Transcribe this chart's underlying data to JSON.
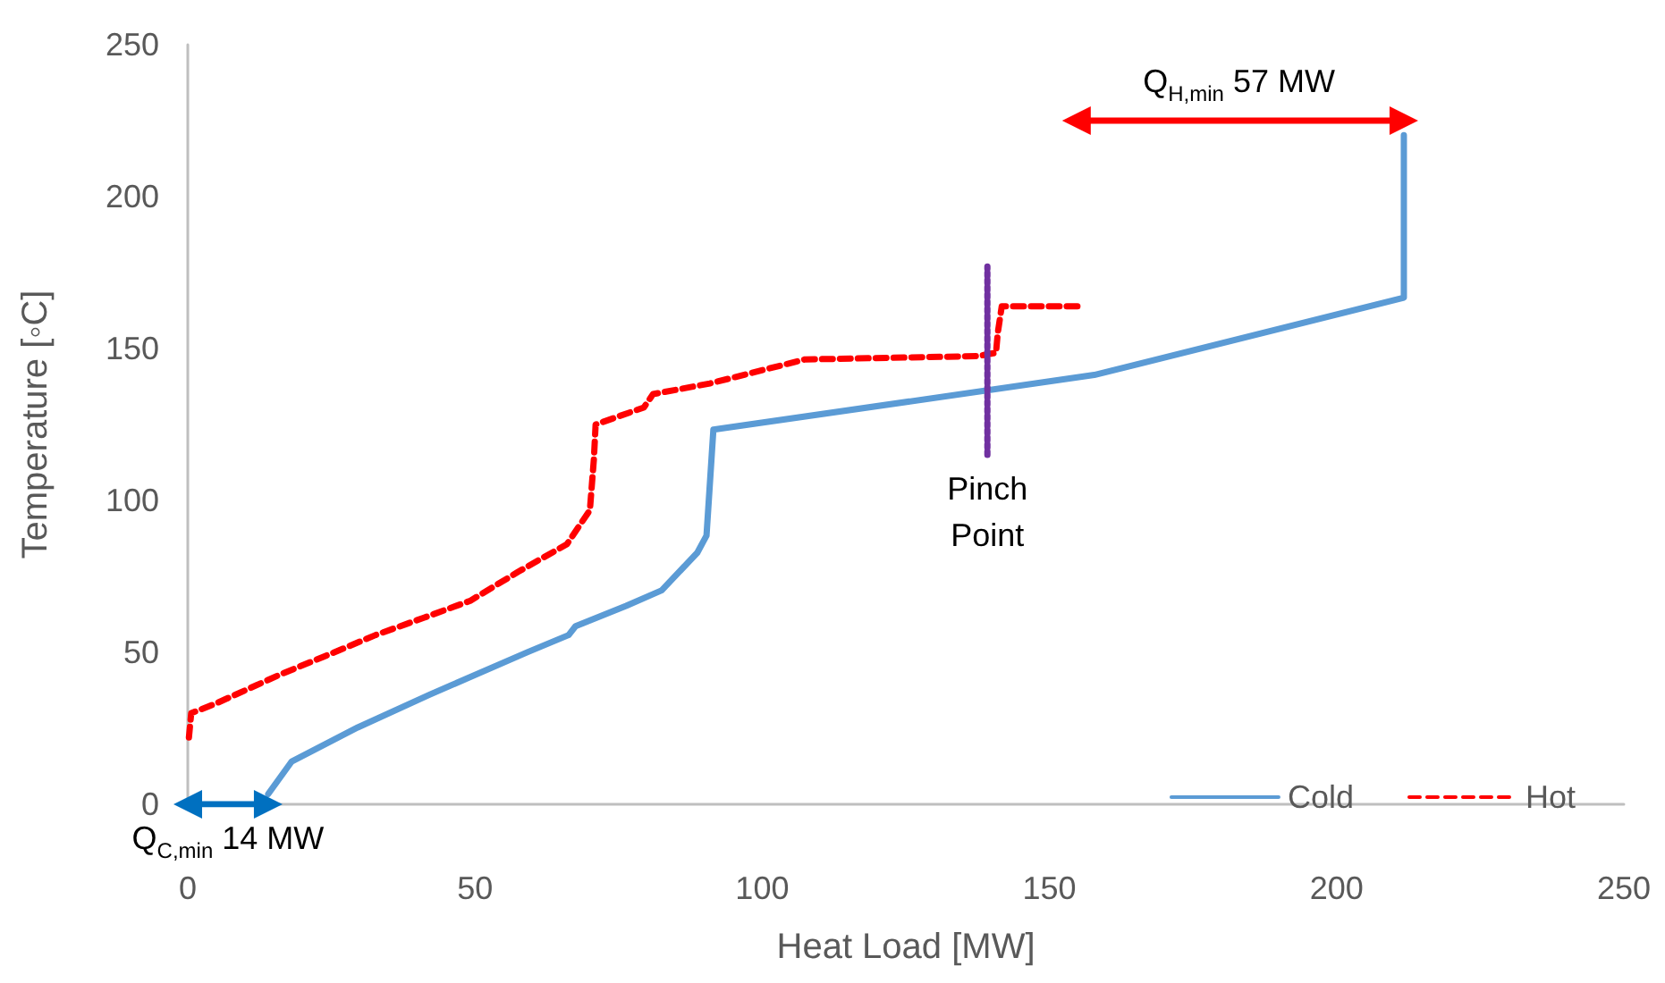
{
  "chart_data": {
    "type": "line",
    "xlabel": "Heat Load [MW]",
    "ylabel": "Temperature [◦C]",
    "xlim": [
      0,
      250
    ],
    "xticks": [
      0,
      50,
      100,
      150,
      200,
      250
    ],
    "ylim": [
      0,
      250
    ],
    "yticks": [
      0,
      50,
      100,
      150,
      200,
      250
    ],
    "grid": false,
    "legend": "bottom right",
    "marker": "none",
    "series": [
      {
        "name": "Cold",
        "color": "#5b9bd5",
        "line_style": "solid",
        "x": [
          14.0,
          18.1,
          29.6,
          42.0,
          59.2,
          66.3,
          67.5,
          76.3,
          82.5,
          88.7,
          90.3,
          91.5,
          157.8,
          211.7,
          211.7
        ],
        "values": [
          3.4,
          14.1,
          25.3,
          36.0,
          50.1,
          55.7,
          58.6,
          65.3,
          70.4,
          82.8,
          88.4,
          123.3,
          141.3,
          166.7,
          220.2
        ]
      },
      {
        "name": "Hot",
        "color": "#ff0000",
        "line_style": "dashed",
        "x": [
          0.2,
          0.6,
          4.7,
          16.2,
          25.5,
          32.7,
          41.1,
          49.2,
          57.6,
          66.0,
          70.0,
          70.7,
          71.0,
          79.4,
          81.0,
          90.9,
          107.4,
          137.6,
          140.7,
          141.0,
          141.7,
          155.0
        ],
        "values": [
          22,
          30,
          33,
          42.8,
          50,
          55.7,
          61.4,
          67,
          76.6,
          85.6,
          96.8,
          113.7,
          125,
          130.6,
          135,
          138.5,
          146.4,
          147.5,
          148.6,
          155,
          163.9,
          163.9
        ]
      },
      {
        "color": "#7030a0",
        "line_style": "dotted",
        "x": [
          139.2,
          139.2
        ],
        "values": [
          115,
          177
        ]
      },
      {
        "color": "#ff0000",
        "line_style": "solid",
        "marker": "triangle",
        "x": [
          154.7,
          211.7
        ],
        "values": [
          225,
          225
        ]
      },
      {
        "color": "#0070c0",
        "line_style": "solid",
        "marker": "triangle",
        "x": [
          0,
          14
        ],
        "values": [
          0,
          0
        ]
      }
    ],
    "annotations": [
      {
        "text": "Pinch Point",
        "x": 139.2,
        "y": 115
      },
      {
        "text": "Q$_{H,min}$ 57 MW",
        "x": 183,
        "y": 228
      },
      {
        "text": "Q$_{C,min}$ 14 MW",
        "x": 7,
        "y": 0
      }
    ]
  }
}
